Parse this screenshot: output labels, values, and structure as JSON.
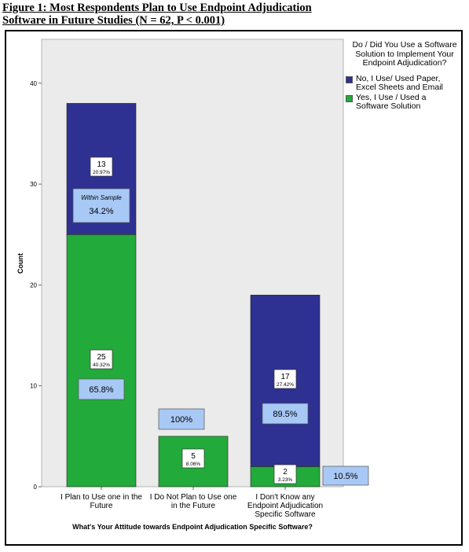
{
  "figure": {
    "title_line1": "Figure 1: Most Respondents Plan to Use Endpoint Adjudication",
    "title_line2": "Software in Future Studies (N = 62, P < 0.001)"
  },
  "colors": {
    "no_series": "#2e3192",
    "yes_series": "#22aa3a",
    "label_box": "#a8c8f5",
    "plot_bg": "#ebebeb"
  },
  "chart_data": {
    "type": "bar",
    "stacked": true,
    "xlabel": "What's Your Attitude towards Endpoint Adjudication Specific Software?",
    "ylabel": "Count",
    "ylim": [
      0,
      45
    ],
    "yticks": [
      0,
      10,
      20,
      30,
      40
    ],
    "grid": false,
    "legend_position": "right",
    "legend_title": "Do / Did You Use a Software  Solution to Implement Your Endpoint Adjudication?",
    "categories": [
      [
        "I Plan to Use one in the",
        "Future"
      ],
      [
        "I Do Not Plan to Use one",
        "in the Future"
      ],
      [
        "I Don't Know any",
        "Endpoint Adjudication",
        "Specific Software"
      ]
    ],
    "series": [
      {
        "key": "yes",
        "name": "Yes, I Use / Used a Software Solution",
        "legend_lines": [
          "Yes, I Use / Used a",
          "Software Solution"
        ],
        "values": [
          25,
          5,
          2
        ],
        "pct_total": [
          "40.32%",
          "8.06%",
          "3.23%"
        ],
        "pct_within": [
          "65.8%",
          "100%",
          "10.5%"
        ]
      },
      {
        "key": "no",
        "name": "No, I Use/ Used Paper, Excel Sheets and Email",
        "legend_lines": [
          "No, I Use/ Used Paper,",
          "Excel Sheets and Email"
        ],
        "values": [
          13,
          0,
          17
        ],
        "pct_total": [
          "20.97%",
          "",
          "27.42%"
        ],
        "pct_within": [
          "34.2%",
          "",
          "89.5%"
        ]
      }
    ],
    "annotation_within_sample": "Within Sample"
  }
}
